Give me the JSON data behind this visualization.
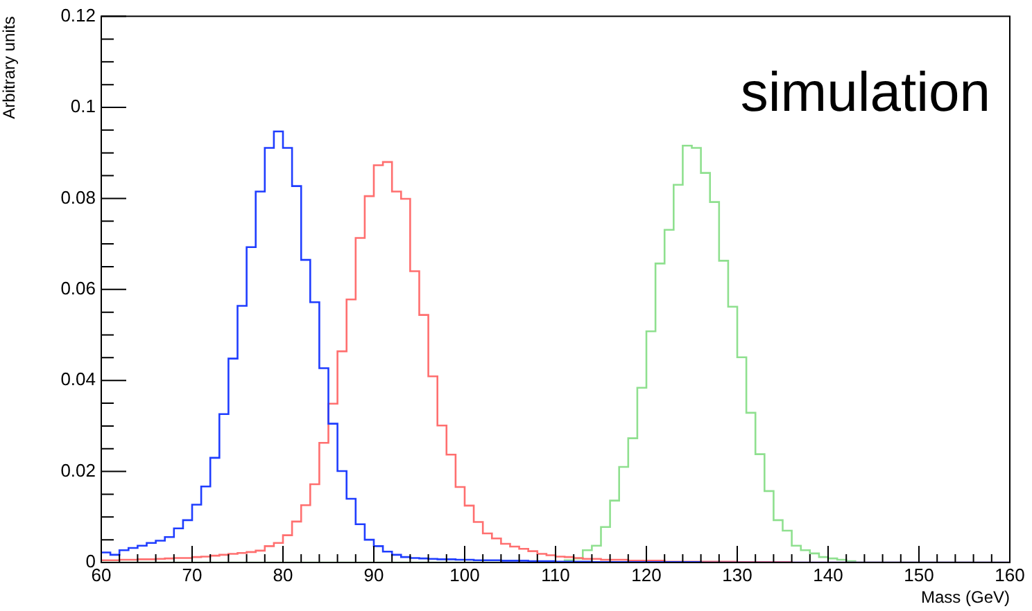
{
  "chart_data": {
    "type": "histogram",
    "xlabel": "Mass (GeV)",
    "ylabel": "Arbitrary units",
    "annotations": [
      "simulation"
    ],
    "bins": [
      60,
      61,
      62,
      63,
      64,
      65,
      66,
      67,
      68,
      69,
      70,
      71,
      72,
      73,
      74,
      75,
      76,
      77,
      78,
      79,
      80,
      81,
      82,
      83,
      84,
      85,
      86,
      87,
      88,
      89,
      90,
      91,
      92,
      93,
      94,
      95,
      96,
      97,
      98,
      99,
      100,
      101,
      102,
      103,
      104,
      105,
      106,
      107,
      108,
      109,
      110,
      111,
      112,
      113,
      114,
      115,
      116,
      117,
      118,
      119,
      120,
      121,
      122,
      123,
      124,
      125,
      126,
      127,
      128,
      129,
      130,
      131,
      132,
      133,
      134,
      135,
      136,
      137,
      138,
      139,
      140,
      141,
      142,
      143,
      144,
      145,
      146,
      147,
      148,
      149,
      150,
      151,
      152,
      153,
      154,
      155,
      156,
      157,
      158,
      159,
      160
    ],
    "series": [
      {
        "color": "#1f3dff",
        "values": [
          0.0022,
          0.0017,
          0.0027,
          0.0032,
          0.0037,
          0.0043,
          0.0048,
          0.0056,
          0.0075,
          0.0093,
          0.0127,
          0.0167,
          0.023,
          0.0326,
          0.0448,
          0.0564,
          0.0693,
          0.0815,
          0.0911,
          0.0947,
          0.0911,
          0.0827,
          0.0665,
          0.0572,
          0.0427,
          0.0305,
          0.0201,
          0.014,
          0.0084,
          0.005,
          0.0036,
          0.0024,
          0.0017,
          0.0012,
          0.001,
          0.0009,
          0.0008,
          0.0007,
          0.0007,
          0.0006,
          0.0006,
          0.0005,
          0.0005,
          0.0005,
          0.0004,
          0.0004,
          0.0004,
          0.0003,
          0.0003,
          0.0003,
          0.0002,
          0.0002,
          0.0002,
          0.0002,
          0.0001,
          0.0001,
          0.0001,
          0.0001,
          0.0001,
          0.0001,
          0.0001,
          0.0001,
          0.0001,
          0.0001,
          0.0001,
          0.0001,
          0,
          0,
          0,
          0,
          0,
          0,
          0,
          0,
          0,
          0,
          0,
          0,
          0,
          0,
          0,
          0,
          0,
          0,
          0,
          0,
          0,
          0,
          0,
          0,
          0,
          0,
          0,
          0,
          0,
          0,
          0,
          0,
          0,
          0
        ]
      },
      {
        "color": "#ff6f6f",
        "values": [
          0.0005,
          0.0005,
          0.0006,
          0.0006,
          0.0007,
          0.0007,
          0.0008,
          0.0009,
          0.001,
          0.001,
          0.0012,
          0.0013,
          0.0015,
          0.0017,
          0.0019,
          0.0021,
          0.0023,
          0.0026,
          0.0036,
          0.0043,
          0.006,
          0.009,
          0.0126,
          0.0172,
          0.0263,
          0.0349,
          0.0464,
          0.0578,
          0.0713,
          0.0805,
          0.0873,
          0.088,
          0.0815,
          0.0799,
          0.064,
          0.0544,
          0.0409,
          0.0301,
          0.0237,
          0.0166,
          0.0125,
          0.0089,
          0.0064,
          0.0053,
          0.0041,
          0.0035,
          0.003,
          0.0025,
          0.0019,
          0.0016,
          0.0013,
          0.0012,
          0.001,
          0.0008,
          0.0008,
          0.0006,
          0.0006,
          0.0006,
          0.0004,
          0.0004,
          0.0004,
          0.0004,
          0.0002,
          0.0002,
          0.0002,
          0.0002,
          0.0002,
          0.0002,
          0.0002,
          0.0002,
          0.0001,
          0.0001,
          0.0001,
          0.0001,
          0.0001,
          0.0001,
          0,
          0,
          0,
          0,
          0,
          0,
          0,
          0,
          0,
          0,
          0,
          0,
          0,
          0,
          0,
          0,
          0,
          0,
          0,
          0,
          0,
          0,
          0,
          0
        ]
      },
      {
        "color": "#8fe08f",
        "values": [
          0,
          0,
          0,
          0,
          0,
          0,
          0,
          0,
          0,
          0,
          0,
          0,
          0,
          0,
          0,
          0,
          0,
          0,
          0,
          0,
          0,
          0,
          0,
          0,
          0,
          0,
          0,
          0,
          0,
          0,
          0,
          0,
          0,
          0,
          0,
          0,
          0,
          0,
          0,
          0,
          0,
          0,
          0,
          0,
          0,
          0,
          0,
          0,
          0,
          0,
          0,
          0.0005,
          0.0009,
          0.0027,
          0.0037,
          0.0078,
          0.0136,
          0.021,
          0.0273,
          0.0384,
          0.0508,
          0.0657,
          0.0731,
          0.083,
          0.0916,
          0.0911,
          0.0856,
          0.0792,
          0.0663,
          0.0562,
          0.0451,
          0.0329,
          0.0238,
          0.0157,
          0.0093,
          0.007,
          0.0037,
          0.0027,
          0.002,
          0.0012,
          0.0009,
          0.0006,
          0.0003,
          0,
          0,
          0,
          0,
          0,
          0,
          0,
          0,
          0,
          0,
          0,
          0,
          0,
          0,
          0,
          0,
          0
        ]
      }
    ],
    "xlim": [
      60,
      160
    ],
    "xticks": [
      60,
      70,
      80,
      90,
      100,
      110,
      120,
      130,
      140,
      150,
      160
    ],
    "ylim": [
      0,
      0.12
    ],
    "yticks": [
      0,
      0.02,
      0.04,
      0.06,
      0.08,
      0.1,
      0.12
    ],
    "grid": false,
    "legend": false
  }
}
